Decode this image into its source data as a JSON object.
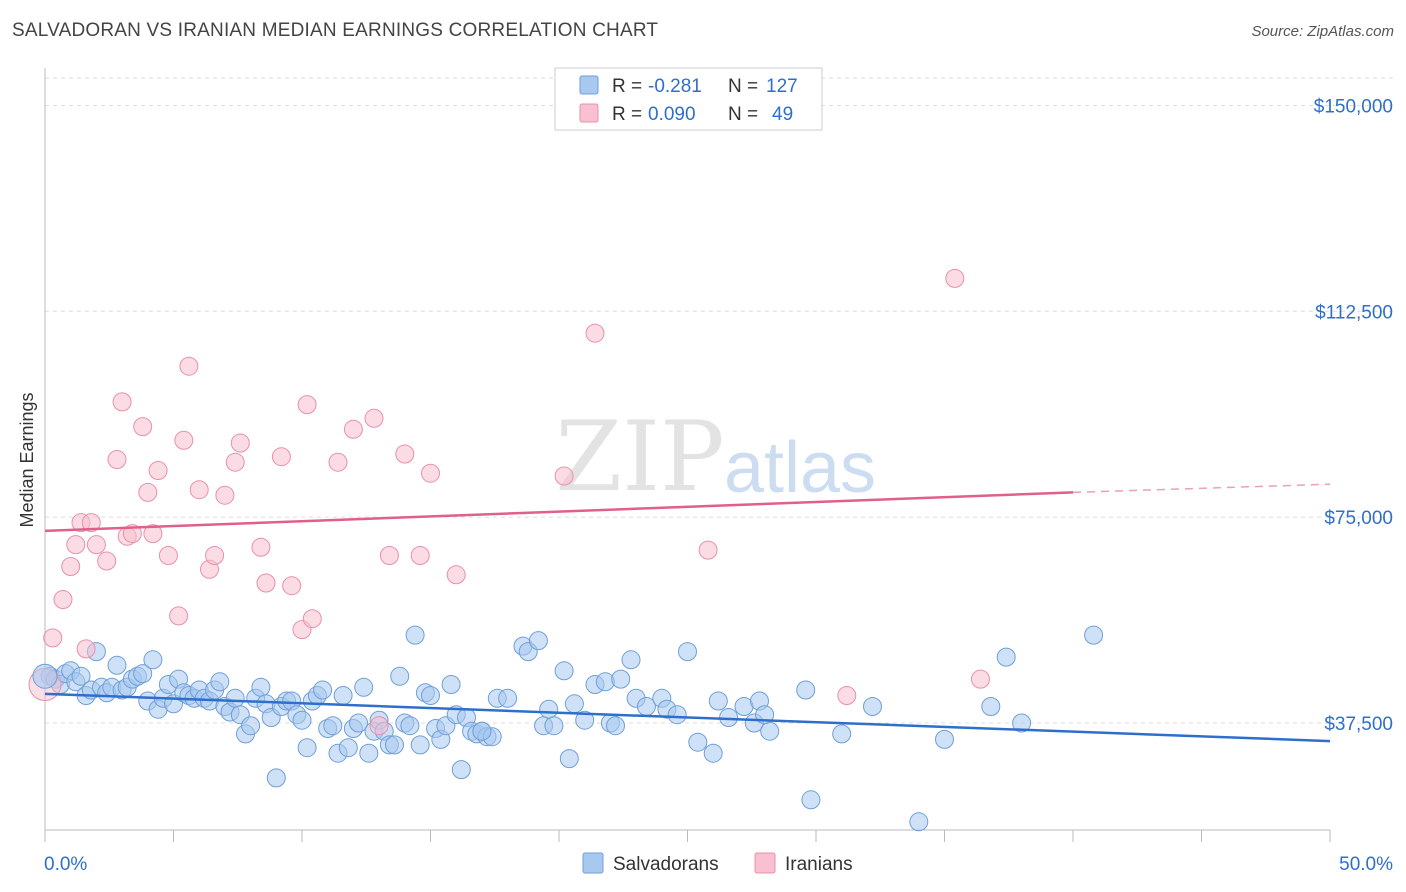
{
  "title": "SALVADORAN VS IRANIAN MEDIAN EARNINGS CORRELATION CHART",
  "source": "Source: ZipAtlas.com",
  "watermark": {
    "zip": "ZIP",
    "atlas": "atlas"
  },
  "legend_top": [
    {
      "r_label": "R =",
      "r_value": "-0.281",
      "n_label": "N =",
      "n_value": "127",
      "color": "#a8c8f0",
      "stroke": "#6f9fd8"
    },
    {
      "r_label": "R =",
      "r_value": "0.090",
      "n_label": "N =",
      "n_value": "49",
      "color": "#f8c0d0",
      "stroke": "#e890aa"
    }
  ],
  "legend_bottom": [
    {
      "label": "Salvadorans",
      "color": "#a8c8f0",
      "stroke": "#6f9fd8"
    },
    {
      "label": "Iranians",
      "color": "#f8c0d0",
      "stroke": "#e890aa"
    }
  ],
  "chart_data": {
    "type": "scatter",
    "xlabel": "",
    "ylabel": "Median Earnings",
    "xlim": [
      0,
      50
    ],
    "ylim": [
      18000,
      155000
    ],
    "x_tick_labels": [
      "0.0%",
      "50.0%"
    ],
    "y_ticks": [
      37500,
      75000,
      112500,
      150000
    ],
    "y_tick_labels": [
      "$37,500",
      "$75,000",
      "$112,500",
      "$150,000"
    ],
    "grid": true,
    "series": [
      {
        "name": "Salvadorans",
        "color": "#a8c8f0",
        "stroke": "#6f9fd8",
        "trend": {
          "x": [
            0,
            50
          ],
          "y": [
            42800,
            34200
          ],
          "color": "#2f6fcc"
        },
        "points": [
          [
            0.2,
            46000
          ],
          [
            0.4,
            45500
          ],
          [
            0.6,
            44500
          ],
          [
            0.8,
            46500
          ],
          [
            1.0,
            47000
          ],
          [
            1.2,
            45000
          ],
          [
            1.4,
            46000
          ],
          [
            1.6,
            42500
          ],
          [
            1.8,
            43500
          ],
          [
            2.0,
            50500
          ],
          [
            2.2,
            44000
          ],
          [
            2.4,
            43000
          ],
          [
            2.6,
            44000
          ],
          [
            2.8,
            48000
          ],
          [
            3.0,
            43500
          ],
          [
            3.2,
            44000
          ],
          [
            3.4,
            45500
          ],
          [
            3.6,
            46000
          ],
          [
            3.8,
            46500
          ],
          [
            4.0,
            41500
          ],
          [
            4.2,
            49000
          ],
          [
            4.4,
            40000
          ],
          [
            4.6,
            42000
          ],
          [
            4.8,
            44500
          ],
          [
            5.0,
            41000
          ],
          [
            5.2,
            45500
          ],
          [
            5.4,
            43000
          ],
          [
            5.6,
            42500
          ],
          [
            5.8,
            42000
          ],
          [
            6.0,
            43500
          ],
          [
            6.2,
            42000
          ],
          [
            6.4,
            41500
          ],
          [
            6.6,
            43500
          ],
          [
            6.8,
            45000
          ],
          [
            7.0,
            40500
          ],
          [
            7.2,
            39500
          ],
          [
            7.4,
            42000
          ],
          [
            7.6,
            39000
          ],
          [
            7.8,
            35500
          ],
          [
            8.0,
            37000
          ],
          [
            8.2,
            42000
          ],
          [
            8.4,
            44000
          ],
          [
            8.6,
            41000
          ],
          [
            8.8,
            38500
          ],
          [
            9.0,
            27500
          ],
          [
            9.2,
            40500
          ],
          [
            9.4,
            41500
          ],
          [
            9.6,
            41500
          ],
          [
            9.8,
            39000
          ],
          [
            10.0,
            38000
          ],
          [
            10.2,
            33000
          ],
          [
            10.4,
            41500
          ],
          [
            10.6,
            42500
          ],
          [
            10.8,
            43500
          ],
          [
            11.0,
            36500
          ],
          [
            11.2,
            37000
          ],
          [
            11.4,
            32000
          ],
          [
            11.6,
            42500
          ],
          [
            11.8,
            33000
          ],
          [
            12.0,
            36500
          ],
          [
            12.2,
            37500
          ],
          [
            12.4,
            44000
          ],
          [
            12.6,
            32000
          ],
          [
            12.8,
            36000
          ],
          [
            13.0,
            38000
          ],
          [
            13.2,
            36000
          ],
          [
            13.4,
            33500
          ],
          [
            13.6,
            33500
          ],
          [
            13.8,
            46000
          ],
          [
            14.0,
            37500
          ],
          [
            14.2,
            37000
          ],
          [
            14.4,
            53500
          ],
          [
            14.6,
            33500
          ],
          [
            14.8,
            43000
          ],
          [
            15.0,
            42500
          ],
          [
            15.2,
            36500
          ],
          [
            15.4,
            34500
          ],
          [
            15.6,
            37000
          ],
          [
            15.8,
            44500
          ],
          [
            16.0,
            39000
          ],
          [
            16.2,
            29000
          ],
          [
            16.4,
            38500
          ],
          [
            16.6,
            36000
          ],
          [
            16.8,
            35500
          ],
          [
            17.0,
            36000
          ],
          [
            17.2,
            35000
          ],
          [
            17.4,
            35000
          ],
          [
            17.6,
            42000
          ],
          [
            18.0,
            42000
          ],
          [
            18.6,
            51500
          ],
          [
            18.8,
            50500
          ],
          [
            19.2,
            52500
          ],
          [
            19.4,
            37000
          ],
          [
            19.6,
            40000
          ],
          [
            19.8,
            37000
          ],
          [
            20.2,
            47000
          ],
          [
            20.4,
            31000
          ],
          [
            20.6,
            41000
          ],
          [
            21.0,
            38000
          ],
          [
            21.4,
            44500
          ],
          [
            21.8,
            45000
          ],
          [
            22.0,
            37500
          ],
          [
            22.2,
            37000
          ],
          [
            22.4,
            45500
          ],
          [
            22.8,
            49000
          ],
          [
            23.0,
            42000
          ],
          [
            23.4,
            40500
          ],
          [
            24.0,
            42000
          ],
          [
            24.2,
            40000
          ],
          [
            24.6,
            39000
          ],
          [
            25.0,
            50500
          ],
          [
            25.4,
            34000
          ],
          [
            26.0,
            32000
          ],
          [
            26.2,
            41500
          ],
          [
            26.6,
            38500
          ],
          [
            27.2,
            40500
          ],
          [
            27.6,
            37500
          ],
          [
            28.2,
            36000
          ],
          [
            29.6,
            43500
          ],
          [
            29.8,
            23500
          ],
          [
            31.0,
            35500
          ],
          [
            32.2,
            40500
          ],
          [
            34.0,
            19500
          ],
          [
            35.0,
            34500
          ],
          [
            36.8,
            40500
          ],
          [
            37.4,
            49500
          ],
          [
            38.0,
            37500
          ],
          [
            40.8,
            53500
          ],
          [
            27.8,
            41500
          ],
          [
            28.0,
            39000
          ],
          [
            17.0,
            36000
          ]
        ]
      },
      {
        "name": "Iranians",
        "color": "#f8c0d0",
        "stroke": "#e890aa",
        "trend": {
          "x": [
            0,
            40
          ],
          "y": [
            72500,
            79500
          ],
          "dash_x": [
            40,
            50
          ],
          "dash_y": [
            79500,
            81000
          ],
          "color": "#e0608a"
        },
        "points": [
          [
            0.3,
            53000
          ],
          [
            0.7,
            60000
          ],
          [
            1.0,
            66000
          ],
          [
            1.2,
            70000
          ],
          [
            1.4,
            74000
          ],
          [
            1.6,
            51000
          ],
          [
            1.8,
            74000
          ],
          [
            2.0,
            70000
          ],
          [
            2.4,
            67000
          ],
          [
            2.8,
            85500
          ],
          [
            3.0,
            96000
          ],
          [
            3.2,
            71500
          ],
          [
            3.4,
            72000
          ],
          [
            3.8,
            91500
          ],
          [
            4.0,
            79500
          ],
          [
            4.2,
            72000
          ],
          [
            4.4,
            83500
          ],
          [
            4.8,
            68000
          ],
          [
            5.2,
            57000
          ],
          [
            5.4,
            89000
          ],
          [
            5.6,
            102500
          ],
          [
            6.0,
            80000
          ],
          [
            6.4,
            65500
          ],
          [
            6.6,
            68000
          ],
          [
            7.0,
            79000
          ],
          [
            7.4,
            85000
          ],
          [
            7.6,
            88500
          ],
          [
            8.4,
            69500
          ],
          [
            8.6,
            63000
          ],
          [
            9.2,
            86000
          ],
          [
            9.6,
            62500
          ],
          [
            10.0,
            54500
          ],
          [
            10.2,
            95500
          ],
          [
            10.4,
            56500
          ],
          [
            11.4,
            85000
          ],
          [
            12.0,
            91000
          ],
          [
            12.8,
            93000
          ],
          [
            13.0,
            37000
          ],
          [
            13.4,
            68000
          ],
          [
            14.0,
            86500
          ],
          [
            14.6,
            68000
          ],
          [
            15.0,
            83000
          ],
          [
            16.0,
            64500
          ],
          [
            20.2,
            82500
          ],
          [
            21.4,
            108500
          ],
          [
            25.8,
            69000
          ],
          [
            31.2,
            42500
          ],
          [
            35.4,
            118500
          ],
          [
            36.4,
            45500
          ]
        ]
      }
    ]
  }
}
